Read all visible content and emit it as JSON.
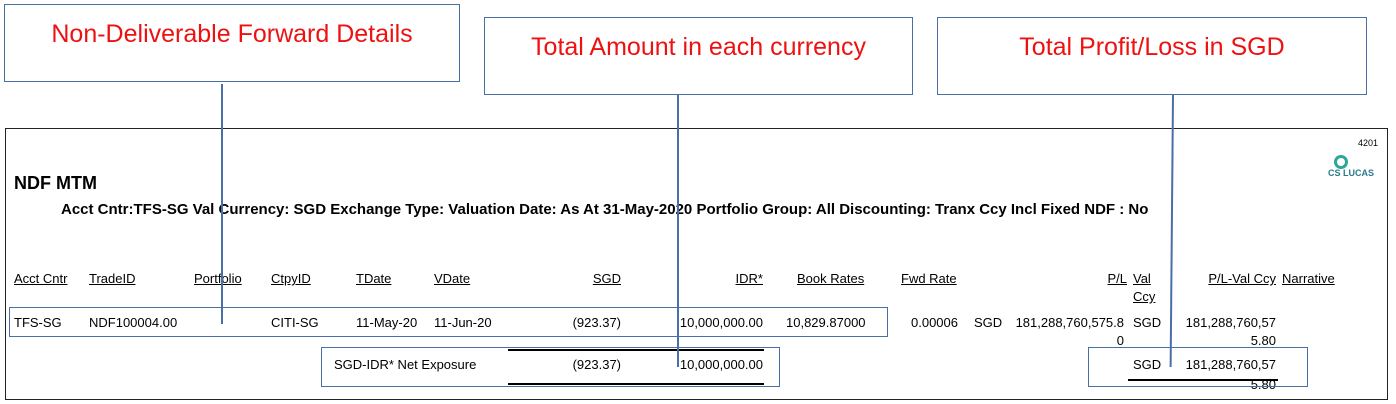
{
  "callouts": {
    "ndf_details": "Non-Deliverable Forward Details",
    "total_amount": "Total Amount in each currency",
    "total_pl": "Total Profit/Loss in SGD"
  },
  "report": {
    "page_no": "4201",
    "title": "NDF MTM",
    "logo": "CS LUCAS",
    "criteria": "Acct Cntr:TFS-SG Val Currency: SGD Exchange Type: Valuation Date: As At  31-May-2020 Portfolio Group: All  Discounting: Tranx Ccy  Incl Fixed NDF : No",
    "headers": {
      "acct_cntr": "Acct Cntr",
      "trade_id": "TradeID",
      "portfolio": "Portfolio",
      "ctpy_id": "CtpyID",
      "tdate": "TDate",
      "vdate": "VDate",
      "sgd": "SGD",
      "idr": "IDR*",
      "book_rates": "Book Rates",
      "fwd_rate": "Fwd Rate",
      "pl": "P/L",
      "val": "Val",
      "ccy": "Ccy",
      "pl_val_ccy": "P/L-Val Ccy",
      "narrative": "Narrative"
    },
    "row": {
      "acct_cntr": "TFS-SG",
      "trade_id": "NDF100004.00",
      "ctpy_id": "CITI-SG",
      "tdate": "11-May-20",
      "vdate": "11-Jun-20",
      "sgd": "(923.37)",
      "idr": "10,000,000.00",
      "book_rates": "10,829.87000",
      "fwd_rate": "0.00006",
      "pl_ccy": "SGD",
      "pl_line1": "181,288,760,575.8",
      "pl_line2": "0",
      "val_ccy": "SGD",
      "pl_val_line1": "181,288,760,57",
      "pl_val_line2": "5.80"
    },
    "total": {
      "label": "SGD-IDR* Net Exposure",
      "sgd": "(923.37)",
      "idr": "10,000,000.00",
      "ccy": "SGD",
      "pl_line1": "181,288,760,57",
      "pl_line2": "5.80"
    }
  }
}
